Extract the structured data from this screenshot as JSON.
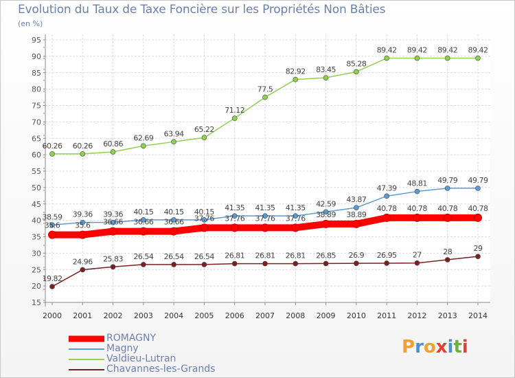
{
  "header": {
    "title": "Evolution du Taux de Taxe Foncière sur les Propriétés Non Bâties",
    "unit": "(en %)"
  },
  "logo": {
    "letters": [
      "P",
      "r",
      "o",
      "x",
      "i",
      "t",
      "i"
    ],
    "colors": [
      "#f0a030",
      "#4a90d0",
      "#f0a030",
      "#e04030",
      "#4a90d0",
      "#70b040",
      "#e04030"
    ]
  },
  "chart_data": {
    "type": "line",
    "title": "Evolution du Taux de Taxe Foncière sur les Propriétés Non Bâties",
    "ylabel": "(en %)",
    "x": [
      "2000",
      "2001",
      "2002",
      "2003",
      "2004",
      "2005",
      "2006",
      "2007",
      "2008",
      "2009",
      "2010",
      "2011",
      "2012",
      "2013",
      "2014"
    ],
    "ylim": [
      15,
      95
    ],
    "yticks": [
      15,
      20,
      25,
      30,
      35,
      40,
      45,
      50,
      55,
      60,
      65,
      70,
      75,
      80,
      85,
      90,
      95
    ],
    "grid": true,
    "legend_position": "bottom-left",
    "series": [
      {
        "name": "ROMAGNY",
        "color": "#ff0000",
        "values": [
          35.6,
          35.6,
          36.66,
          36.66,
          36.66,
          37.76,
          37.76,
          37.76,
          37.76,
          38.89,
          38.89,
          40.78,
          40.78,
          40.78,
          40.78
        ],
        "labels": [
          "35.6",
          "35.6",
          "36.66",
          "36.66",
          "36.66",
          "37.76",
          "37.76",
          "37.76",
          "37.76",
          "38.89",
          "38.89",
          "40.78",
          "40.78",
          "40.78",
          "40.78"
        ]
      },
      {
        "name": "Magny",
        "color": "#5b9bd5",
        "values": [
          38.59,
          39.36,
          39.36,
          40.15,
          40.15,
          40.15,
          41.35,
          41.35,
          41.35,
          42.59,
          43.87,
          47.39,
          48.81,
          49.79,
          49.79
        ],
        "labels": [
          "38.59",
          "39.36",
          "39.36",
          "40.15",
          "40.15",
          "40.15",
          "41.35",
          "41.35",
          "41.35",
          "42.59",
          "43.87",
          "47.39",
          "48.81",
          "49.79",
          "49.79"
        ]
      },
      {
        "name": "Valdieu-Lutran",
        "color": "#8fd14f",
        "values": [
          60.26,
          60.26,
          60.86,
          62.69,
          63.94,
          65.22,
          71.12,
          77.5,
          82.92,
          83.45,
          85.28,
          89.42,
          89.42,
          89.42,
          89.42
        ],
        "labels": [
          "60.26",
          "60.26",
          "60.86",
          "62.69",
          "63.94",
          "65.22",
          "71.12",
          "77.5",
          "82.92",
          "83.45",
          "85.28",
          "89.42",
          "89.42",
          "89.42",
          "89.42"
        ]
      },
      {
        "name": "Chavannes-les-Grands",
        "color": "#7a2020",
        "values": [
          19.82,
          24.96,
          25.83,
          26.54,
          26.54,
          26.54,
          26.81,
          26.81,
          26.81,
          26.85,
          26.9,
          26.95,
          27,
          28,
          29
        ],
        "labels": [
          "19.82",
          "24.96",
          "25.83",
          "26.54",
          "26.54",
          "26.54",
          "26.81",
          "26.81",
          "26.81",
          "26.85",
          "26.9",
          "26.95",
          "27",
          "28",
          "29"
        ]
      }
    ]
  }
}
